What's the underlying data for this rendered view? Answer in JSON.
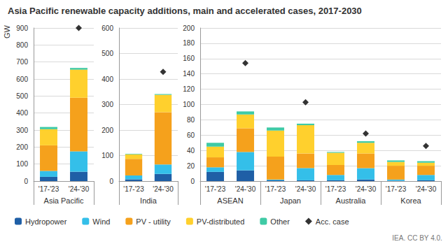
{
  "title": "Asia Pacific renewable capacity additions, main and accelerated cases, 2017-2030",
  "source": "IEA. CC BY 4.0.",
  "chart_data": [
    {
      "type": "bar",
      "stacked": true,
      "grid": true,
      "legend": "bottom",
      "ylabel": "GW",
      "categories": [
        "'17-'23",
        "'24-'30"
      ],
      "groups": [
        "Asia Pacific"
      ],
      "ylim": [
        0,
        900
      ],
      "yticks": [
        0,
        100,
        200,
        300,
        400,
        500,
        600,
        700,
        800,
        900
      ],
      "series": [
        {
          "name": "Hydropower",
          "color": "#1f5fa6",
          "values": [
            25,
            55
          ]
        },
        {
          "name": "Wind",
          "color": "#34bfe9",
          "values": [
            35,
            120
          ]
        },
        {
          "name": "PV - utility",
          "color": "#f5a11c",
          "values": [
            150,
            315
          ]
        },
        {
          "name": "PV-distributed",
          "color": "#ffd02d",
          "values": [
            95,
            165
          ]
        },
        {
          "name": "Other",
          "color": "#3fcaa5",
          "values": [
            13,
            10
          ]
        },
        {
          "name": "Acc. case",
          "type": "scatter",
          "marker": "diamond",
          "color": "#000000",
          "values": [
            null,
            900
          ]
        }
      ]
    },
    {
      "type": "bar",
      "stacked": true,
      "grid": true,
      "categories": [
        "'17-'23",
        "'24-'30"
      ],
      "groups": [
        "India"
      ],
      "ylim": [
        0,
        600
      ],
      "yticks": [
        0,
        100,
        200,
        300,
        400,
        500,
        600
      ],
      "series": [
        {
          "name": "Hydropower",
          "color": "#1f5fa6",
          "values": [
            7,
            28
          ]
        },
        {
          "name": "Wind",
          "color": "#34bfe9",
          "values": [
            15,
            37
          ]
        },
        {
          "name": "PV - utility",
          "color": "#f5a11c",
          "values": [
            65,
            205
          ]
        },
        {
          "name": "PV-distributed",
          "color": "#ffd02d",
          "values": [
            18,
            68
          ]
        },
        {
          "name": "Other",
          "color": "#3fcaa5",
          "values": [
            2,
            3
          ]
        },
        {
          "name": "Acc. case",
          "type": "scatter",
          "marker": "diamond",
          "color": "#000000",
          "values": [
            null,
            428
          ]
        }
      ]
    },
    {
      "type": "bar",
      "stacked": true,
      "grid": true,
      "categories": [
        "'17-'23",
        "'24-'30",
        "'17-'23",
        "'24-'30",
        "'17-'23",
        "'24-'30",
        "'17-'23",
        "'24-'30"
      ],
      "groups": [
        "ASEAN",
        "Japan",
        "Australia",
        "Korea"
      ],
      "ylim": [
        0,
        200
      ],
      "yticks": [
        0,
        20,
        40,
        60,
        80,
        100,
        120,
        140,
        160,
        180,
        200
      ],
      "series": [
        {
          "name": "Hydropower",
          "color": "#1f5fa6",
          "values": [
            12,
            14,
            1,
            1,
            1,
            2,
            0.5,
            1
          ]
        },
        {
          "name": "Wind",
          "color": "#34bfe9",
          "values": [
            6,
            24,
            1,
            16,
            7,
            15,
            1.5,
            7
          ]
        },
        {
          "name": "PV - utility",
          "color": "#f5a11c",
          "values": [
            13,
            31,
            30,
            19,
            13,
            19,
            18,
            12
          ]
        },
        {
          "name": "PV-distributed",
          "color": "#ffd02d",
          "values": [
            14,
            18,
            34,
            37,
            16,
            14,
            5,
            4
          ]
        },
        {
          "name": "Other",
          "color": "#3fcaa5",
          "values": [
            5,
            4,
            4,
            2,
            1,
            2,
            2,
            2
          ]
        },
        {
          "name": "Acc. case",
          "type": "scatter",
          "marker": "diamond",
          "color": "#000000",
          "values": [
            null,
            154,
            null,
            103,
            null,
            62,
            null,
            46
          ]
        }
      ]
    }
  ]
}
